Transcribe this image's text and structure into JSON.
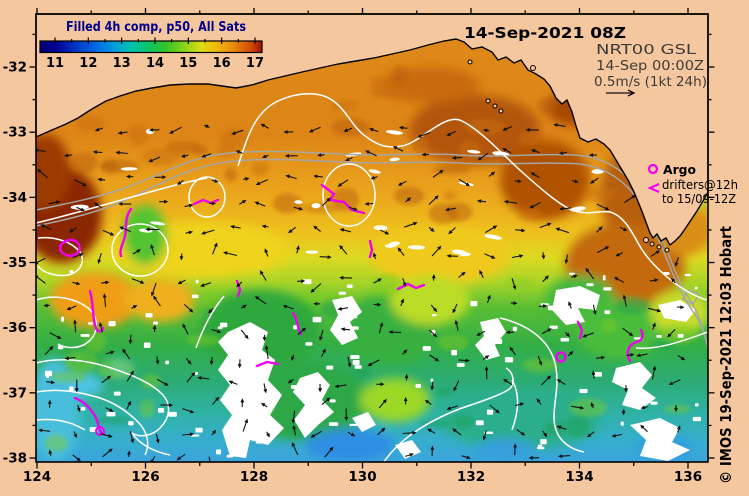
{
  "figure": {
    "title": "Filled 4h comp, p50, All Sats",
    "datetime_label": "14-Sep-2021 08Z",
    "model_info": {
      "line1": "NRT00 GSL",
      "line2": "14-Sep 00:00Z",
      "line3": "0.5m/s (1kt 24h)"
    },
    "argo_legend": {
      "line1": "Argo",
      "line2": "drifters@12h",
      "line3": "to 15/09-12Z"
    },
    "credit": "© IMOS 19-Sep-2021 12:03 Hobart",
    "colors": {
      "background": "#F5C79E",
      "land": "#F5C79E",
      "title": "#00008B",
      "axis_text": "#000000",
      "model_text": "#3C3C3C",
      "drifter_magenta": "#F000F0",
      "vector_black": "#111111",
      "contour_white": "#FFFFFF",
      "contour_gray": "#A6A6A6"
    }
  },
  "chart_data": {
    "type": "heatmap",
    "title": "Filled 4h comp, p50, All Sats",
    "timestamp": "14-Sep-2021 08Z",
    "colorbar": {
      "ticks": [
        11,
        12,
        13,
        14,
        15,
        16,
        17
      ],
      "range": [
        10.55,
        17.2
      ],
      "colors": [
        "#000080",
        "#0038C8",
        "#0070E8",
        "#00A8D8",
        "#00C4A8",
        "#10C460",
        "#30C42C",
        "#8CD41A",
        "#DEDC12",
        "#F0B40E",
        "#E8850A",
        "#CE4606",
        "#A01204"
      ]
    },
    "x_axis": {
      "ticks": [
        124,
        126,
        128,
        130,
        132,
        134,
        136
      ],
      "minor_ticks": [
        125,
        127,
        129,
        131,
        133,
        135
      ],
      "range": [
        124,
        136.4
      ]
    },
    "y_axis": {
      "ticks": [
        -32,
        -33,
        -34,
        -35,
        -36,
        -37,
        -38
      ],
      "minor_step": 0.5,
      "range": [
        -38.07,
        -31.19
      ]
    },
    "overlays": [
      {
        "name": "surface-currents",
        "label": "NRT00 GSL 14-Sep 00:00Z",
        "scale": "0.5m/s (1kt 24h)"
      },
      {
        "name": "argo-drifters",
        "label": "Argo drifters@12h to 15/09-12Z"
      }
    ]
  }
}
